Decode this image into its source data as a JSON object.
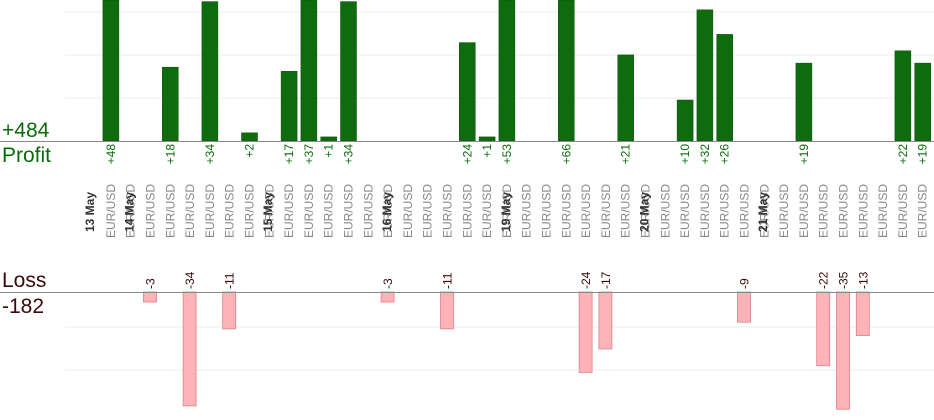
{
  "summary": {
    "profit_total": "+484",
    "profit_label": "Profit",
    "loss_label": "Loss",
    "loss_total": "-182"
  },
  "colors": {
    "profit_bar": "#0e6b0e",
    "profit_bar_edge": "#0a4f0a",
    "profit_text": "#0b6b0b",
    "loss_bar": "#ffb3b8",
    "loss_bar_edge": "#e07f86",
    "loss_text": "#3a0a0a",
    "grid": "#eeeeee",
    "axis": "#888888",
    "day_label": "#333333",
    "pair_label": "#888888"
  },
  "chart_data": {
    "type": "bar",
    "title": "",
    "series": [
      {
        "name": "Profit",
        "values": [
          48,
          0,
          0,
          18,
          0,
          34,
          0,
          2,
          0,
          17,
          37,
          1,
          34,
          0,
          0,
          0,
          0,
          0,
          24,
          1,
          53,
          0,
          0,
          66,
          0,
          0,
          21,
          0,
          0,
          10,
          32,
          26,
          0,
          0,
          0,
          19,
          0,
          0,
          0,
          0,
          22,
          19
        ]
      },
      {
        "name": "Loss",
        "values": [
          0,
          0,
          -3,
          0,
          -34,
          0,
          -11,
          0,
          0,
          0,
          0,
          0,
          0,
          0,
          -3,
          0,
          0,
          -11,
          0,
          0,
          0,
          0,
          0,
          0,
          -24,
          -17,
          0,
          0,
          0,
          0,
          0,
          0,
          -9,
          0,
          0,
          0,
          -22,
          -35,
          -13,
          0,
          0,
          0
        ]
      }
    ],
    "profit_labels": [
      "+48",
      "",
      "",
      "+18",
      "",
      "+34",
      "",
      "+2",
      "",
      "+17",
      "+37",
      "+1",
      "+34",
      "",
      "",
      "",
      "",
      "",
      "+24",
      "+1",
      "+53",
      "",
      "",
      "+66",
      "",
      "",
      "+21",
      "",
      "",
      "+10",
      "+32",
      "+26",
      "",
      "",
      "",
      "+19",
      "",
      "",
      "",
      "",
      "+22",
      "+19"
    ],
    "loss_labels": [
      "",
      "",
      "-3",
      "",
      "-34",
      "",
      "-11",
      "",
      "",
      "",
      "",
      "",
      "",
      "",
      "-3",
      "",
      "",
      "-11",
      "",
      "",
      "",
      "",
      "",
      "",
      "-24",
      "-17",
      "",
      "",
      "",
      "",
      "",
      "",
      "-9",
      "",
      "",
      "",
      "-22",
      "-35",
      "-13",
      "",
      "",
      ""
    ],
    "pairs": [
      "EUR/USD",
      "EUR/USD",
      "EUR/USD",
      "EUR/USD",
      "EUR/USD",
      "EUR/USD",
      "EUR/USD",
      "EUR/USD",
      "EUR/USD",
      "EUR/USD",
      "EUR/USD",
      "EUR/USD",
      "EUR/USD",
      "EUR/USD",
      "EUR/USD",
      "EUR/USD",
      "EUR/USD",
      "EUR/USD",
      "EUR/USD",
      "EUR/USD",
      "EUR/USD",
      "EUR/USD",
      "EUR/USD",
      "EUR/USD",
      "EUR/USD",
      "EUR/USD",
      "EUR/USD",
      "EUR/USD",
      "EUR/USD",
      "EUR/USD",
      "EUR/USD",
      "EUR/USD",
      "EUR/USD",
      "EUR/USD",
      "EUR/USD",
      "EUR/USD",
      "EUR/USD",
      "EUR/USD",
      "EUR/USD",
      "EUR/USD",
      "EUR/USD",
      "EUR/USD"
    ],
    "days": [
      {
        "label": "13 May",
        "before_index": 0
      },
      {
        "label": "14 May",
        "before_index": 2
      },
      {
        "label": "15 May",
        "before_index": 9
      },
      {
        "label": "16 May",
        "before_index": 15
      },
      {
        "label": "19 May",
        "before_index": 21
      },
      {
        "label": "20 May",
        "before_index": 28
      },
      {
        "label": "21 May",
        "before_index": 34
      }
    ],
    "profit_ylim": [
      0,
      33
    ],
    "loss_ylim": [
      -34,
      0
    ],
    "grid": true
  }
}
